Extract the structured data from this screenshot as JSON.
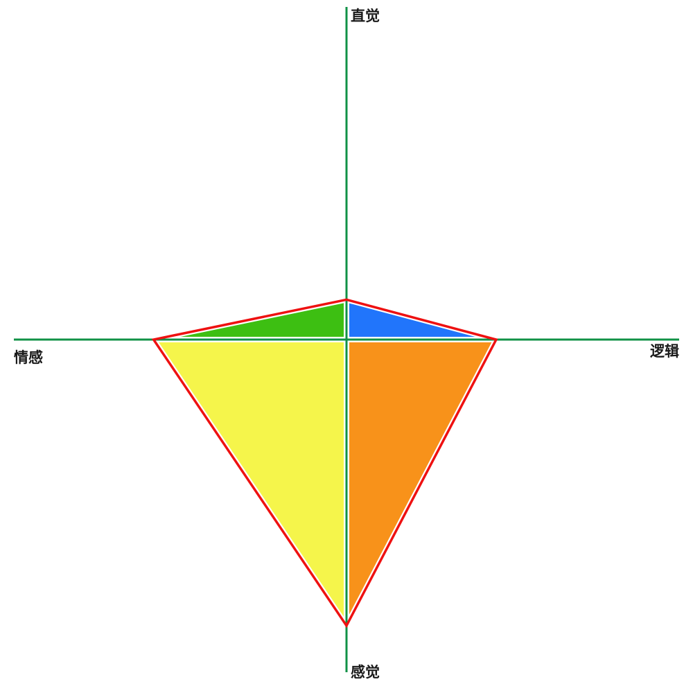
{
  "chart_data": {
    "type": "radar",
    "axes": [
      {
        "label": "直觉",
        "value": 0.12
      },
      {
        "label": "逻辑",
        "value": 0.45
      },
      {
        "label": "感觉",
        "value": 0.86
      },
      {
        "label": "情感",
        "value": 0.58
      }
    ],
    "range": [
      0,
      1
    ],
    "colors": {
      "axis": "#109146",
      "outline": "#ee1111",
      "separator": "#ffffff",
      "sectors": [
        "#2175fb",
        "#f8921a",
        "#f5f54b",
        "#3dbf12"
      ]
    }
  }
}
